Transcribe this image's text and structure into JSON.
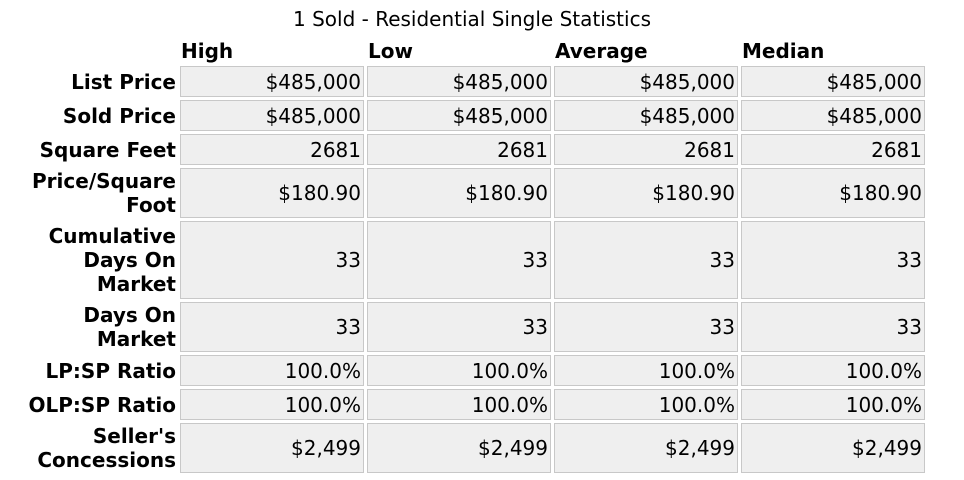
{
  "title": "1 Sold - Residential Single Statistics",
  "columns": [
    "High",
    "Low",
    "Average",
    "Median"
  ],
  "rows": [
    {
      "label": "List Price",
      "values": [
        "$485,000",
        "$485,000",
        "$485,000",
        "$485,000"
      ]
    },
    {
      "label": "Sold Price",
      "values": [
        "$485,000",
        "$485,000",
        "$485,000",
        "$485,000"
      ]
    },
    {
      "label": "Square Feet",
      "values": [
        "2681",
        "2681",
        "2681",
        "2681"
      ]
    },
    {
      "label": "Price/Square Foot",
      "values": [
        "$180.90",
        "$180.90",
        "$180.90",
        "$180.90"
      ]
    },
    {
      "label": "Cumulative Days On Market",
      "values": [
        "33",
        "33",
        "33",
        "33"
      ]
    },
    {
      "label": "Days On Market",
      "values": [
        "33",
        "33",
        "33",
        "33"
      ]
    },
    {
      "label": "LP:SP Ratio",
      "values": [
        "100.0%",
        "100.0%",
        "100.0%",
        "100.0%"
      ]
    },
    {
      "label": "OLP:SP Ratio",
      "values": [
        "100.0%",
        "100.0%",
        "100.0%",
        "100.0%"
      ]
    },
    {
      "label": "Seller's Concessions",
      "values": [
        "$2,499",
        "$2,499",
        "$2,499",
        "$2,499"
      ]
    }
  ]
}
